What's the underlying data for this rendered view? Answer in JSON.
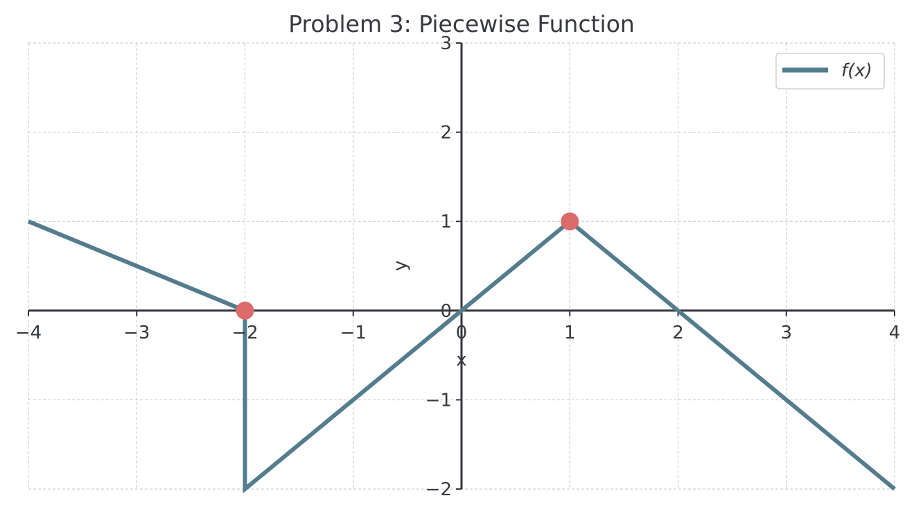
{
  "chart_data": {
    "type": "line",
    "title": "Problem 3: Piecewise Function",
    "xlabel": "x",
    "ylabel": "y",
    "xlim": [
      -4,
      4
    ],
    "ylim": [
      -2,
      3
    ],
    "xticks": [
      -4,
      -3,
      -2,
      -1,
      0,
      1,
      2,
      3,
      4
    ],
    "yticks": [
      -2,
      -1,
      0,
      1,
      2,
      3
    ],
    "xtick_labels": [
      "−4",
      "−3",
      "−2",
      "−1",
      "0",
      "1",
      "2",
      "3",
      "4"
    ],
    "ytick_labels": [
      "−2",
      "−1",
      "0",
      "1",
      "2",
      "3"
    ],
    "grid": true,
    "legend_position": "top-right",
    "series": [
      {
        "name": "f(x)",
        "color": "#537d8d",
        "x": [
          -4,
          -2,
          -2,
          1,
          4
        ],
        "y": [
          1,
          0,
          -2,
          1,
          -2
        ]
      }
    ],
    "highlight_points": {
      "color": "#dc6b6b",
      "x": [
        -2,
        1
      ],
      "y": [
        0,
        1
      ]
    }
  }
}
